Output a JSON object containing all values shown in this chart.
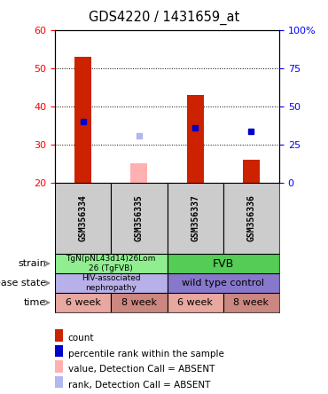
{
  "title": "GDS4220 / 1431659_at",
  "samples": [
    "GSM356334",
    "GSM356335",
    "GSM356337",
    "GSM356336"
  ],
  "count_values": [
    53,
    null,
    43,
    26
  ],
  "count_absent_values": [
    null,
    25,
    null,
    null
  ],
  "percentile_values": [
    40,
    null,
    36,
    34
  ],
  "percentile_absent_values": [
    null,
    31,
    null,
    null
  ],
  "ylim_left": [
    20,
    60
  ],
  "ylim_right": [
    0,
    100
  ],
  "yticks_left": [
    20,
    30,
    40,
    50,
    60
  ],
  "yticks_right": [
    0,
    25,
    50,
    75,
    100
  ],
  "ytick_right_labels": [
    "0",
    "25",
    "50",
    "75",
    "100%"
  ],
  "bar_width": 0.3,
  "count_color": "#cc2200",
  "count_absent_color": "#ffb0b0",
  "percentile_color": "#0000cc",
  "percentile_absent_color": "#b0b8ee",
  "strain_left_text": "TgN(pNL43d14)26Lom\n26 (TgFVB)",
  "strain_right_text": "FVB",
  "strain_left_color": "#90ee90",
  "strain_right_color": "#55cc55",
  "disease_left_text": "HIV-associated\nnephropathy",
  "disease_right_text": "wild type control",
  "disease_left_color": "#b8b0e8",
  "disease_right_color": "#8878cc",
  "time_labels": [
    "6 week",
    "8 week",
    "6 week",
    "8 week"
  ],
  "time_colors": [
    "#e8a8a0",
    "#cc8880",
    "#e8a8a0",
    "#cc8880"
  ],
  "row_labels": [
    "strain",
    "disease state",
    "time"
  ],
  "legend_items": [
    {
      "label": "count",
      "color": "#cc2200"
    },
    {
      "label": "percentile rank within the sample",
      "color": "#0000cc"
    },
    {
      "label": "value, Detection Call = ABSENT",
      "color": "#ffb0b0"
    },
    {
      "label": "rank, Detection Call = ABSENT",
      "color": "#b0b8ee"
    }
  ]
}
